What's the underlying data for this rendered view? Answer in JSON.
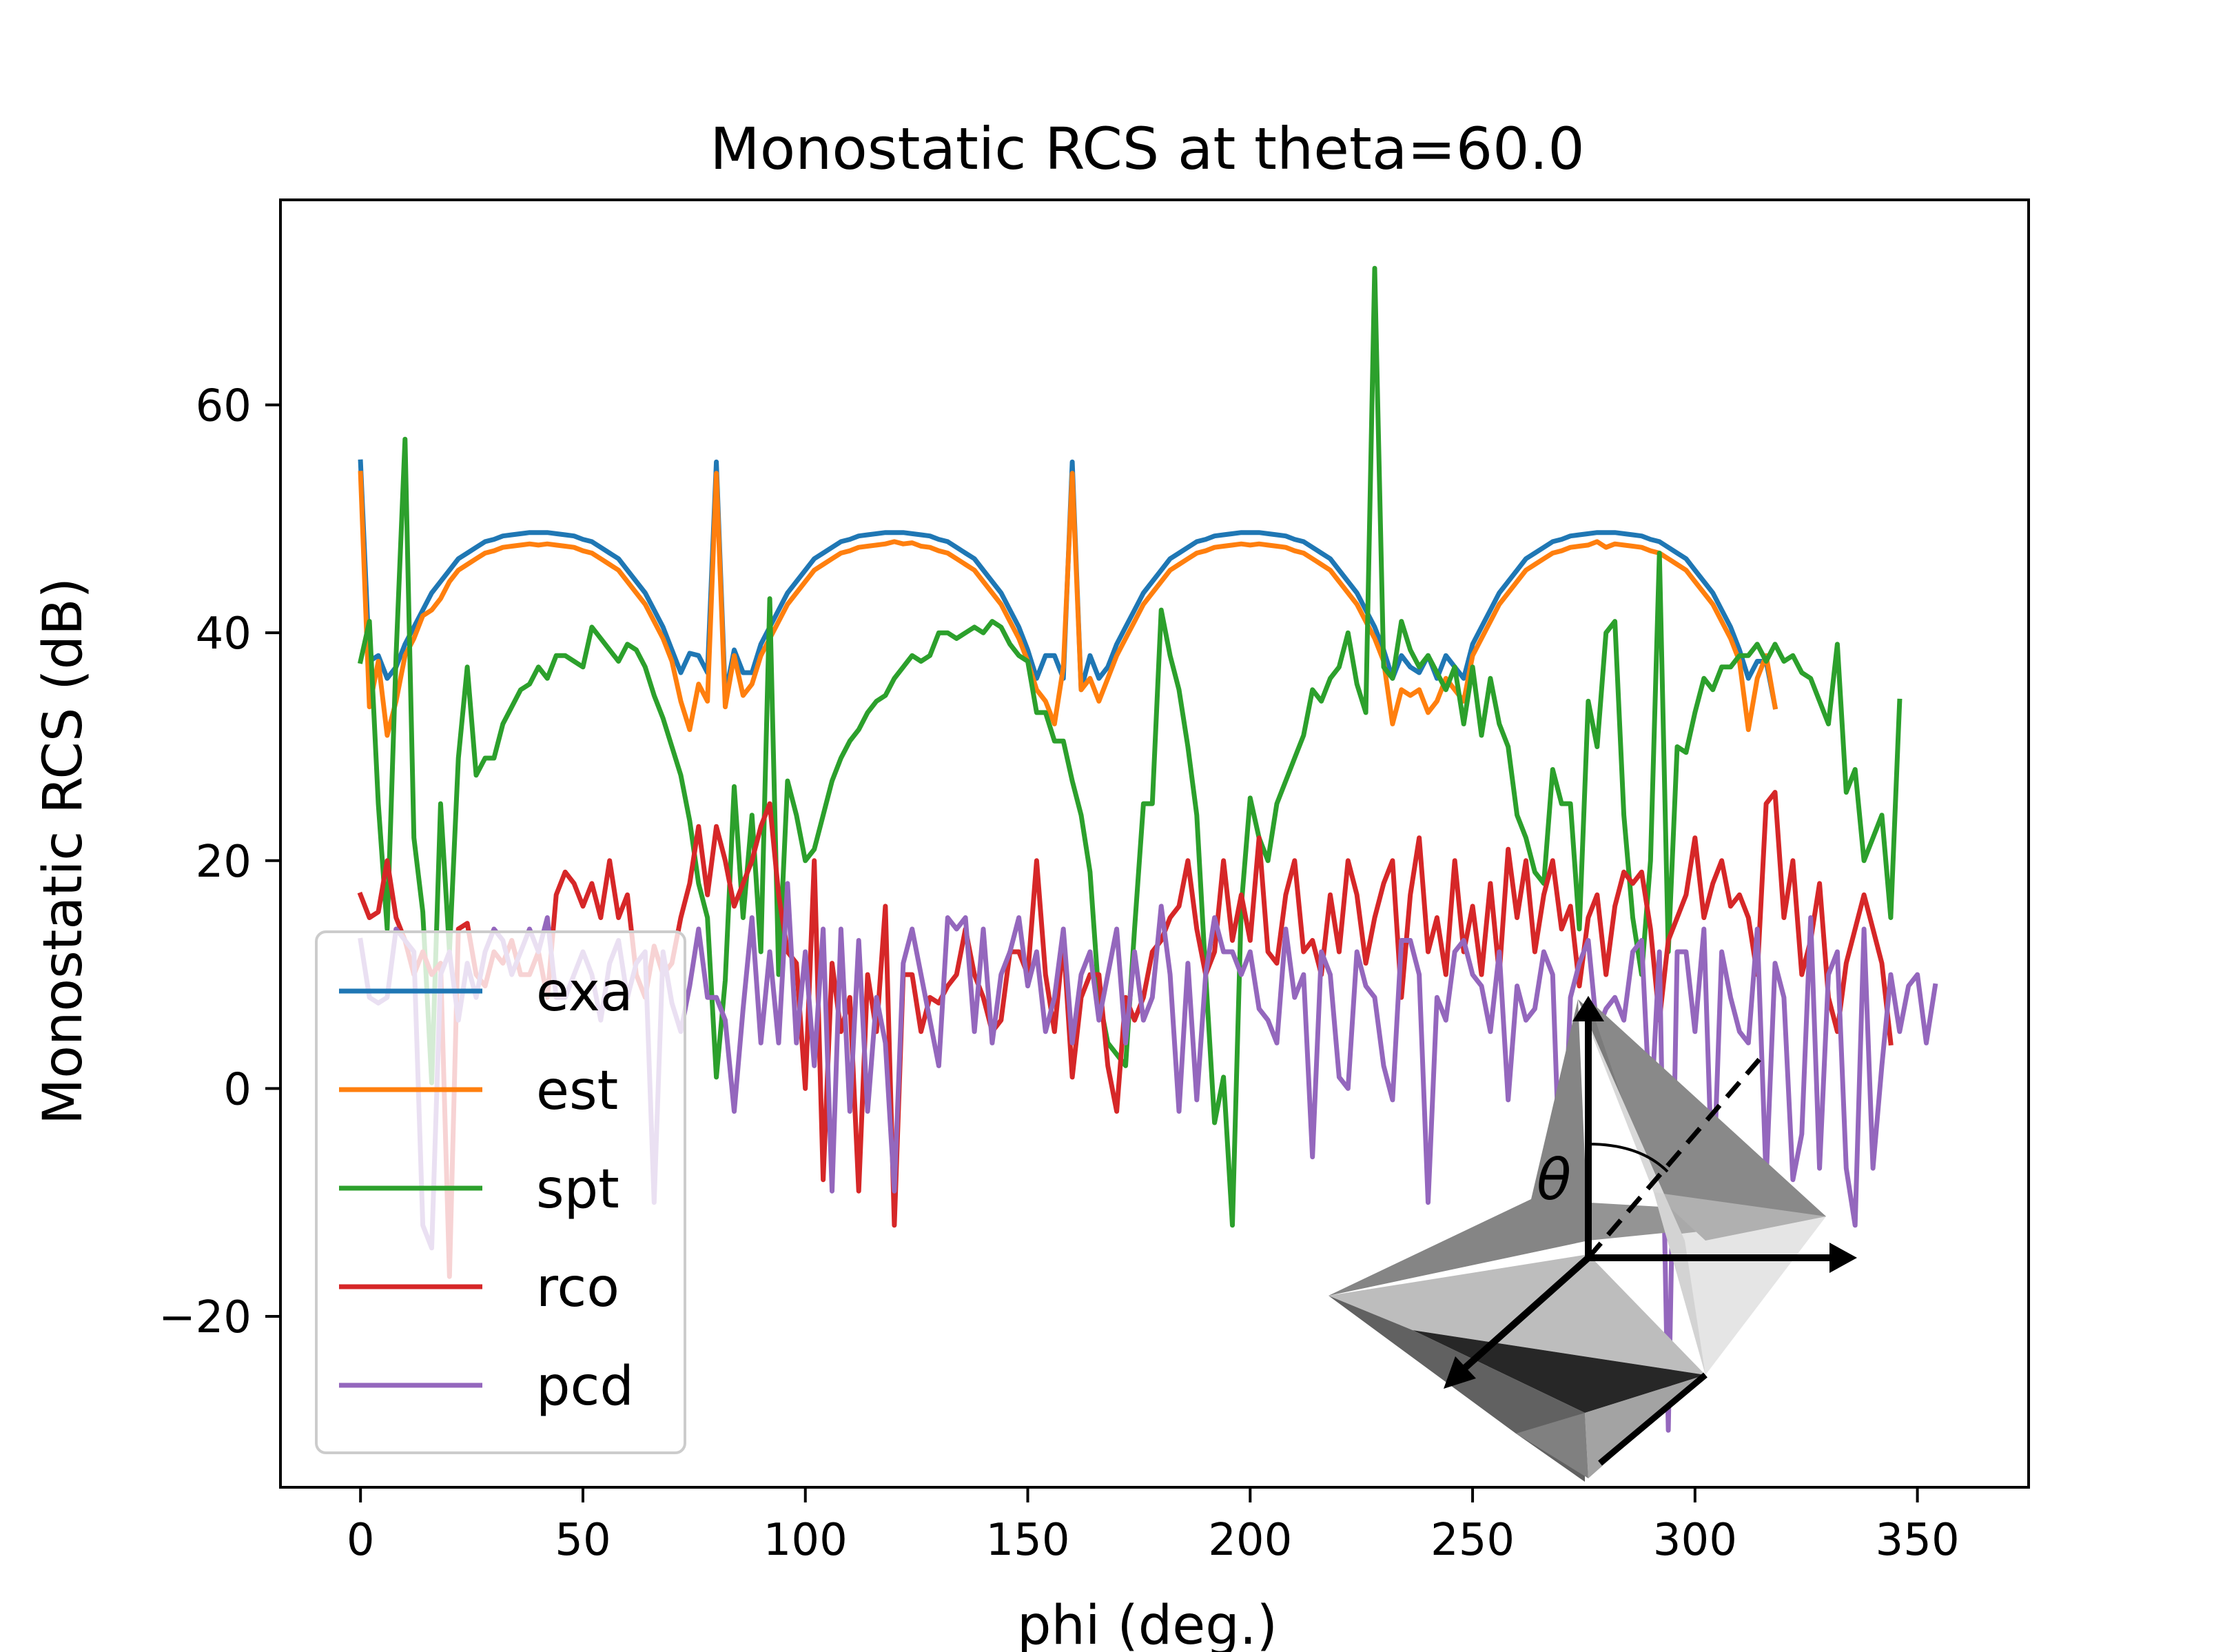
{
  "chart_data": {
    "type": "line",
    "title": "Monostatic RCS at theta=60.0",
    "xlabel": "phi (deg.)",
    "ylabel": "Monostatic RCS (dB)",
    "xlim": [
      -18,
      375
    ],
    "ylim": [
      -35,
      78
    ],
    "xticks": [
      0,
      50,
      100,
      150,
      200,
      250,
      300,
      350
    ],
    "yticks": [
      -20,
      0,
      20,
      40,
      60
    ],
    "ytick_labels": [
      "−20",
      "0",
      "20",
      "40",
      "60"
    ],
    "grid": false,
    "legend_position": "lower-left",
    "inset": {
      "type": "octahedron-illustration",
      "angle_symbol": "θ"
    },
    "x_start": 0,
    "x_step": 2,
    "series": [
      {
        "name": "exa",
        "color": "#1f77b4",
        "values": [
          55,
          37.5,
          38,
          36,
          37,
          39,
          40.5,
          42,
          43.5,
          44.5,
          45.5,
          46.5,
          47,
          47.5,
          48,
          48.2,
          48.5,
          48.6,
          48.7,
          48.8,
          48.8,
          48.8,
          48.7,
          48.6,
          48.5,
          48.2,
          48,
          47.5,
          47,
          46.5,
          45.5,
          44.5,
          43.5,
          42,
          40.5,
          38.5,
          36.5,
          38.2,
          38,
          36.5,
          55,
          34.5,
          38.5,
          36.5,
          36.5,
          39,
          40.5,
          42,
          43.5,
          44.5,
          45.5,
          46.5,
          47,
          47.5,
          48,
          48.2,
          48.5,
          48.6,
          48.7,
          48.8,
          48.8,
          48.8,
          48.7,
          48.6,
          48.5,
          48.2,
          48,
          47.5,
          47,
          46.5,
          45.5,
          44.5,
          43.5,
          42,
          40.5,
          38.5,
          36,
          38,
          38,
          36,
          55,
          35,
          38,
          36,
          37,
          39,
          40.5,
          42,
          43.5,
          44.5,
          45.5,
          46.5,
          47,
          47.5,
          48,
          48.2,
          48.5,
          48.6,
          48.7,
          48.8,
          48.8,
          48.8,
          48.7,
          48.6,
          48.5,
          48.2,
          48,
          47.5,
          47,
          46.5,
          45.5,
          44.5,
          43.5,
          42,
          40.5,
          38.5,
          36,
          38,
          37,
          36.5,
          38,
          36,
          38,
          37,
          36,
          39,
          40.5,
          42,
          43.5,
          44.5,
          45.5,
          46.5,
          47,
          47.5,
          48,
          48.2,
          48.5,
          48.6,
          48.7,
          48.8,
          48.8,
          48.8,
          48.7,
          48.6,
          48.5,
          48.2,
          48,
          47.5,
          47,
          46.5,
          45.5,
          44.5,
          43.5,
          42,
          40.5,
          38.5,
          36,
          37.5,
          37.5,
          33.5
        ]
      },
      {
        "name": "est",
        "color": "#ff7f0e",
        "values": [
          54,
          33.5,
          37.5,
          31,
          34,
          38,
          39.5,
          41.5,
          42,
          43,
          44.5,
          45.5,
          46,
          46.5,
          47,
          47.2,
          47.5,
          47.6,
          47.7,
          47.8,
          47.7,
          47.8,
          47.7,
          47.6,
          47.5,
          47.2,
          47,
          46.5,
          46,
          45.5,
          44.5,
          43.5,
          42.5,
          41,
          39.5,
          37.5,
          34,
          31.5,
          35.5,
          34,
          54,
          33.5,
          38,
          34.5,
          35.5,
          38,
          39.5,
          41,
          42.5,
          43.5,
          44.5,
          45.5,
          46,
          46.5,
          47,
          47.2,
          47.5,
          47.6,
          47.7,
          47.8,
          48,
          47.8,
          47.9,
          47.6,
          47.5,
          47.2,
          47,
          46.5,
          46,
          45.5,
          44.5,
          43.5,
          42.5,
          41,
          39.5,
          37.5,
          35,
          34,
          32,
          37,
          54,
          35,
          36,
          34,
          36,
          38,
          39.5,
          41,
          42.5,
          43.5,
          44.5,
          45.5,
          46,
          46.5,
          47,
          47.2,
          47.5,
          47.6,
          47.7,
          47.8,
          47.7,
          47.8,
          47.7,
          47.6,
          47.5,
          47.2,
          47,
          46.5,
          46,
          45.5,
          44.5,
          43.5,
          42.5,
          41,
          39.5,
          37.5,
          32,
          35,
          34.5,
          35,
          33,
          34,
          36,
          35,
          34,
          38,
          39.5,
          41,
          42.5,
          43.5,
          44.5,
          45.5,
          46,
          46.5,
          47,
          47.2,
          47.5,
          47.6,
          47.7,
          48,
          47.5,
          47.8,
          47.7,
          47.6,
          47.5,
          47.2,
          47,
          46.5,
          46,
          45.5,
          44.5,
          43.5,
          42.5,
          41,
          39.5,
          37.5,
          31.5,
          36,
          38,
          33.5
        ]
      },
      {
        "name": "spt",
        "color": "#2ca02c",
        "values": [
          37.5,
          41,
          25,
          14,
          38,
          57,
          22,
          15.5,
          0.5,
          25,
          12,
          29,
          37,
          27.5,
          29,
          29,
          32,
          33.5,
          35,
          35.5,
          37,
          36,
          38,
          38,
          37.5,
          37,
          40.5,
          39.5,
          38.5,
          37.5,
          39,
          38.5,
          37,
          34.5,
          32.5,
          30,
          27.5,
          23.5,
          18,
          15,
          1,
          9.5,
          26.5,
          15,
          24,
          12,
          43,
          10,
          27,
          24,
          20,
          21,
          24,
          27,
          29,
          30.5,
          31.5,
          33,
          34,
          34.5,
          36,
          37,
          38,
          37.5,
          38,
          40,
          40,
          39.5,
          40,
          40.5,
          40,
          41,
          40.5,
          39,
          38,
          37.5,
          33,
          33,
          30.5,
          30.5,
          27,
          24,
          19,
          8,
          4,
          3,
          2,
          14,
          25,
          25,
          42,
          38,
          35,
          30,
          24,
          10,
          -3,
          1,
          -12,
          16,
          25.5,
          22,
          20,
          25,
          27,
          29,
          31,
          35,
          34,
          36,
          37,
          40,
          35.5,
          33,
          72,
          37,
          36,
          41,
          38.5,
          37,
          38,
          36.5,
          35,
          37,
          32,
          37,
          31,
          36,
          32,
          30,
          24,
          22,
          19,
          18,
          28,
          25,
          25,
          14,
          34,
          30,
          40,
          41,
          24,
          15,
          10,
          20,
          47,
          12,
          30,
          29.5,
          33,
          36,
          35,
          37,
          37,
          38,
          38,
          39,
          37.5,
          39,
          37.5,
          38,
          36.5,
          36,
          34,
          32,
          39,
          26,
          28,
          20,
          22,
          24,
          15,
          34
        ]
      },
      {
        "name": "rco",
        "color": "#d62728",
        "values": [
          17,
          15,
          15.5,
          20,
          15,
          13,
          10,
          12,
          10,
          11,
          -16.5,
          14,
          14.5,
          10,
          9,
          12,
          11,
          13,
          10,
          10,
          12,
          8,
          17,
          19,
          18,
          16,
          18,
          15,
          20,
          15,
          17,
          10,
          8,
          12.5,
          10,
          11,
          15,
          18,
          23,
          17,
          23,
          20,
          16,
          18,
          20,
          23,
          25,
          17,
          12,
          11,
          0,
          20,
          -8,
          11,
          5,
          8,
          -9,
          10,
          5,
          16,
          -12,
          10,
          10,
          5,
          8,
          7.5,
          9,
          10,
          14,
          10,
          8,
          5,
          6,
          12,
          12,
          10,
          20,
          10,
          5,
          13,
          1,
          8,
          10,
          10,
          2,
          -2,
          8,
          6,
          8,
          12,
          13,
          15,
          16,
          20,
          14,
          10,
          12,
          20,
          13,
          17,
          13,
          22,
          12,
          11,
          17,
          20,
          12,
          13,
          10,
          17,
          12,
          20,
          17,
          11,
          15,
          18,
          20,
          8,
          17,
          22,
          12,
          15,
          10,
          20,
          12,
          16,
          10,
          18,
          10,
          21,
          15,
          20,
          12,
          17,
          20,
          14,
          16,
          9,
          15,
          17,
          10,
          16,
          19,
          18,
          19,
          14,
          6,
          13,
          15,
          17,
          22,
          15,
          18,
          20,
          16,
          17,
          15,
          10,
          25,
          26,
          15,
          20,
          10,
          13,
          18,
          8,
          5,
          11,
          14,
          17,
          14,
          11,
          4
        ]
      },
      {
        "name": "pcd",
        "color": "#9467bd",
        "values": [
          13,
          8,
          7.5,
          8,
          14,
          13,
          12,
          -12,
          -14,
          10,
          12,
          6,
          11,
          8,
          12,
          14,
          13,
          10,
          12,
          14,
          12,
          15,
          8,
          8,
          10,
          12,
          10,
          6,
          11,
          13,
          8,
          11,
          12,
          -10,
          12,
          7.5,
          5,
          9,
          14,
          8,
          8,
          6,
          -2,
          7,
          15,
          4,
          12,
          4,
          18,
          4,
          12,
          2,
          14,
          -9,
          14,
          -2,
          13,
          -2,
          8,
          4,
          -9,
          11,
          14,
          10,
          6,
          2,
          15,
          14,
          15,
          5,
          14,
          4,
          10,
          12,
          15,
          9,
          12,
          5,
          8,
          14,
          4,
          10,
          12,
          6,
          10,
          14,
          4,
          12,
          6,
          8,
          16,
          10,
          -2,
          11,
          -1,
          10,
          15,
          12,
          12,
          10,
          12,
          7,
          6,
          4,
          14,
          8,
          10,
          -6,
          12,
          10,
          1,
          0,
          12,
          9,
          8,
          2,
          -1,
          13,
          13,
          10,
          -10,
          8,
          6,
          12,
          13,
          10,
          9,
          5,
          12,
          -1,
          9,
          6,
          7,
          12,
          10,
          -12,
          8,
          11,
          13,
          5,
          7,
          8,
          6,
          12,
          13,
          -3,
          12,
          -30,
          12,
          12,
          5,
          14,
          -10,
          12,
          8,
          5,
          4,
          14,
          -8,
          11,
          8,
          -8,
          -4,
          15,
          -7,
          10,
          12,
          -7,
          -12,
          14,
          -7,
          2,
          10,
          5,
          9,
          10,
          4,
          9
        ]
      }
    ]
  }
}
